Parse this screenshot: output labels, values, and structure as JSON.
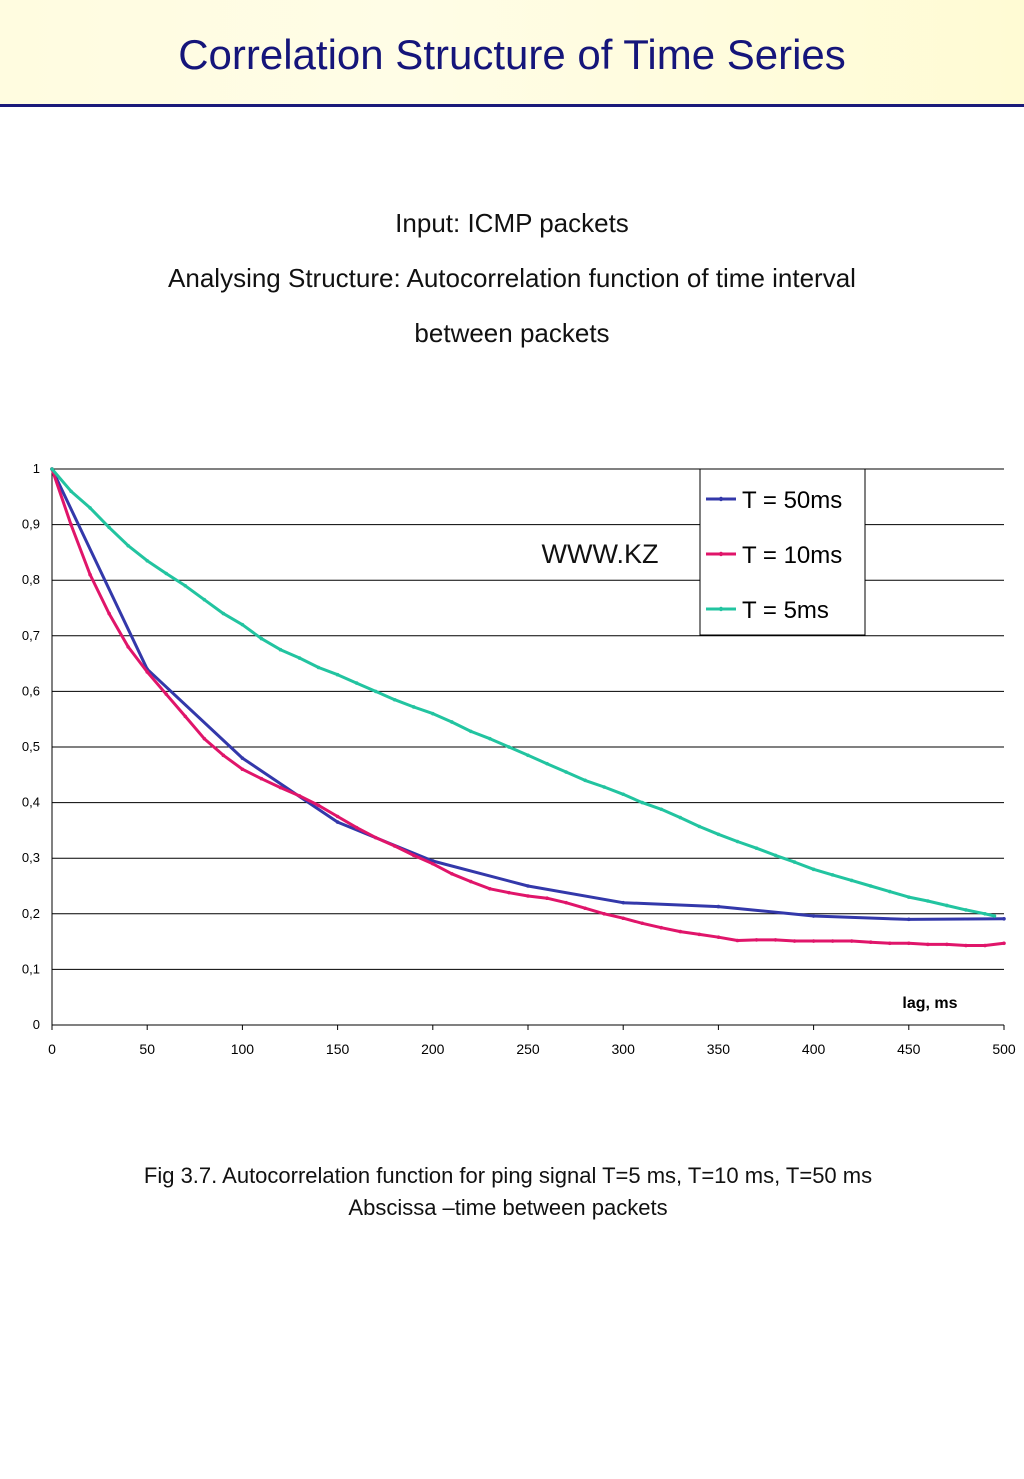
{
  "header": {
    "title": "Correlation Structure of Time Series",
    "bg_color": "#fffce0",
    "title_color": "#15157a"
  },
  "intro": {
    "line1": "Input: ICMP packets",
    "line2": "Analysing Structure: Autocorrelation function of time interval",
    "line3": "between packets"
  },
  "watermark": "WWW.KZ",
  "chart_data": {
    "type": "line",
    "title": "",
    "xlabel": "lag, ms",
    "ylabel": "",
    "xlim": [
      0,
      500
    ],
    "ylim": [
      0,
      1
    ],
    "x_ticks": [
      "0",
      "50",
      "100",
      "150",
      "200",
      "250",
      "300",
      "350",
      "400",
      "450",
      "500"
    ],
    "y_ticks": [
      "0",
      "0,1",
      "0,2",
      "0,3",
      "0,4",
      "0,5",
      "0,6",
      "0,7",
      "0,8",
      "0,9",
      "1"
    ],
    "grid": "horizontal",
    "legend_position": "top-right",
    "series": [
      {
        "name": "T = 50ms",
        "color": "#3338aa",
        "x": [
          0,
          50,
          100,
          150,
          200,
          250,
          300,
          350,
          400,
          450,
          500
        ],
        "y": [
          1.0,
          0.64,
          0.48,
          0.365,
          0.295,
          0.25,
          0.22,
          0.213,
          0.196,
          0.19,
          0.191
        ]
      },
      {
        "name": "T = 10ms",
        "color": "#e0156a",
        "x": [
          0,
          10,
          20,
          30,
          40,
          50,
          60,
          70,
          80,
          90,
          100,
          110,
          120,
          130,
          140,
          150,
          160,
          170,
          180,
          190,
          200,
          210,
          220,
          230,
          240,
          250,
          260,
          270,
          280,
          290,
          300,
          310,
          320,
          330,
          340,
          350,
          360,
          370,
          380,
          390,
          400,
          410,
          420,
          430,
          440,
          450,
          460,
          470,
          480,
          490,
          500
        ],
        "y": [
          1.0,
          0.9,
          0.81,
          0.74,
          0.68,
          0.635,
          0.595,
          0.555,
          0.515,
          0.485,
          0.46,
          0.443,
          0.427,
          0.412,
          0.395,
          0.375,
          0.355,
          0.337,
          0.322,
          0.305,
          0.29,
          0.272,
          0.258,
          0.245,
          0.238,
          0.232,
          0.228,
          0.22,
          0.21,
          0.2,
          0.192,
          0.183,
          0.175,
          0.168,
          0.163,
          0.158,
          0.152,
          0.153,
          0.153,
          0.151,
          0.151,
          0.151,
          0.151,
          0.149,
          0.147,
          0.147,
          0.145,
          0.145,
          0.143,
          0.143,
          0.147
        ]
      },
      {
        "name": "T = 5ms",
        "color": "#22c4a0",
        "x": [
          0,
          10,
          20,
          30,
          40,
          50,
          60,
          70,
          80,
          90,
          100,
          110,
          120,
          130,
          140,
          150,
          160,
          170,
          180,
          190,
          200,
          210,
          220,
          230,
          240,
          250,
          260,
          270,
          280,
          290,
          300,
          310,
          320,
          330,
          340,
          350,
          360,
          370,
          380,
          390,
          400,
          410,
          420,
          430,
          440,
          450,
          460,
          470,
          480,
          490,
          495
        ],
        "y": [
          1.0,
          0.96,
          0.93,
          0.895,
          0.862,
          0.835,
          0.812,
          0.79,
          0.765,
          0.74,
          0.72,
          0.695,
          0.675,
          0.66,
          0.643,
          0.63,
          0.615,
          0.6,
          0.585,
          0.572,
          0.56,
          0.545,
          0.528,
          0.515,
          0.5,
          0.485,
          0.47,
          0.455,
          0.44,
          0.428,
          0.415,
          0.4,
          0.388,
          0.373,
          0.357,
          0.343,
          0.33,
          0.318,
          0.305,
          0.293,
          0.28,
          0.27,
          0.26,
          0.25,
          0.24,
          0.23,
          0.223,
          0.215,
          0.207,
          0.2,
          0.196
        ]
      }
    ]
  },
  "caption": {
    "line1": "Fig 3.7. Autocorrelation function for ping signal T=5 ms, T=10 ms, T=50 ms",
    "line2": "Abscissa –time between  packets"
  }
}
